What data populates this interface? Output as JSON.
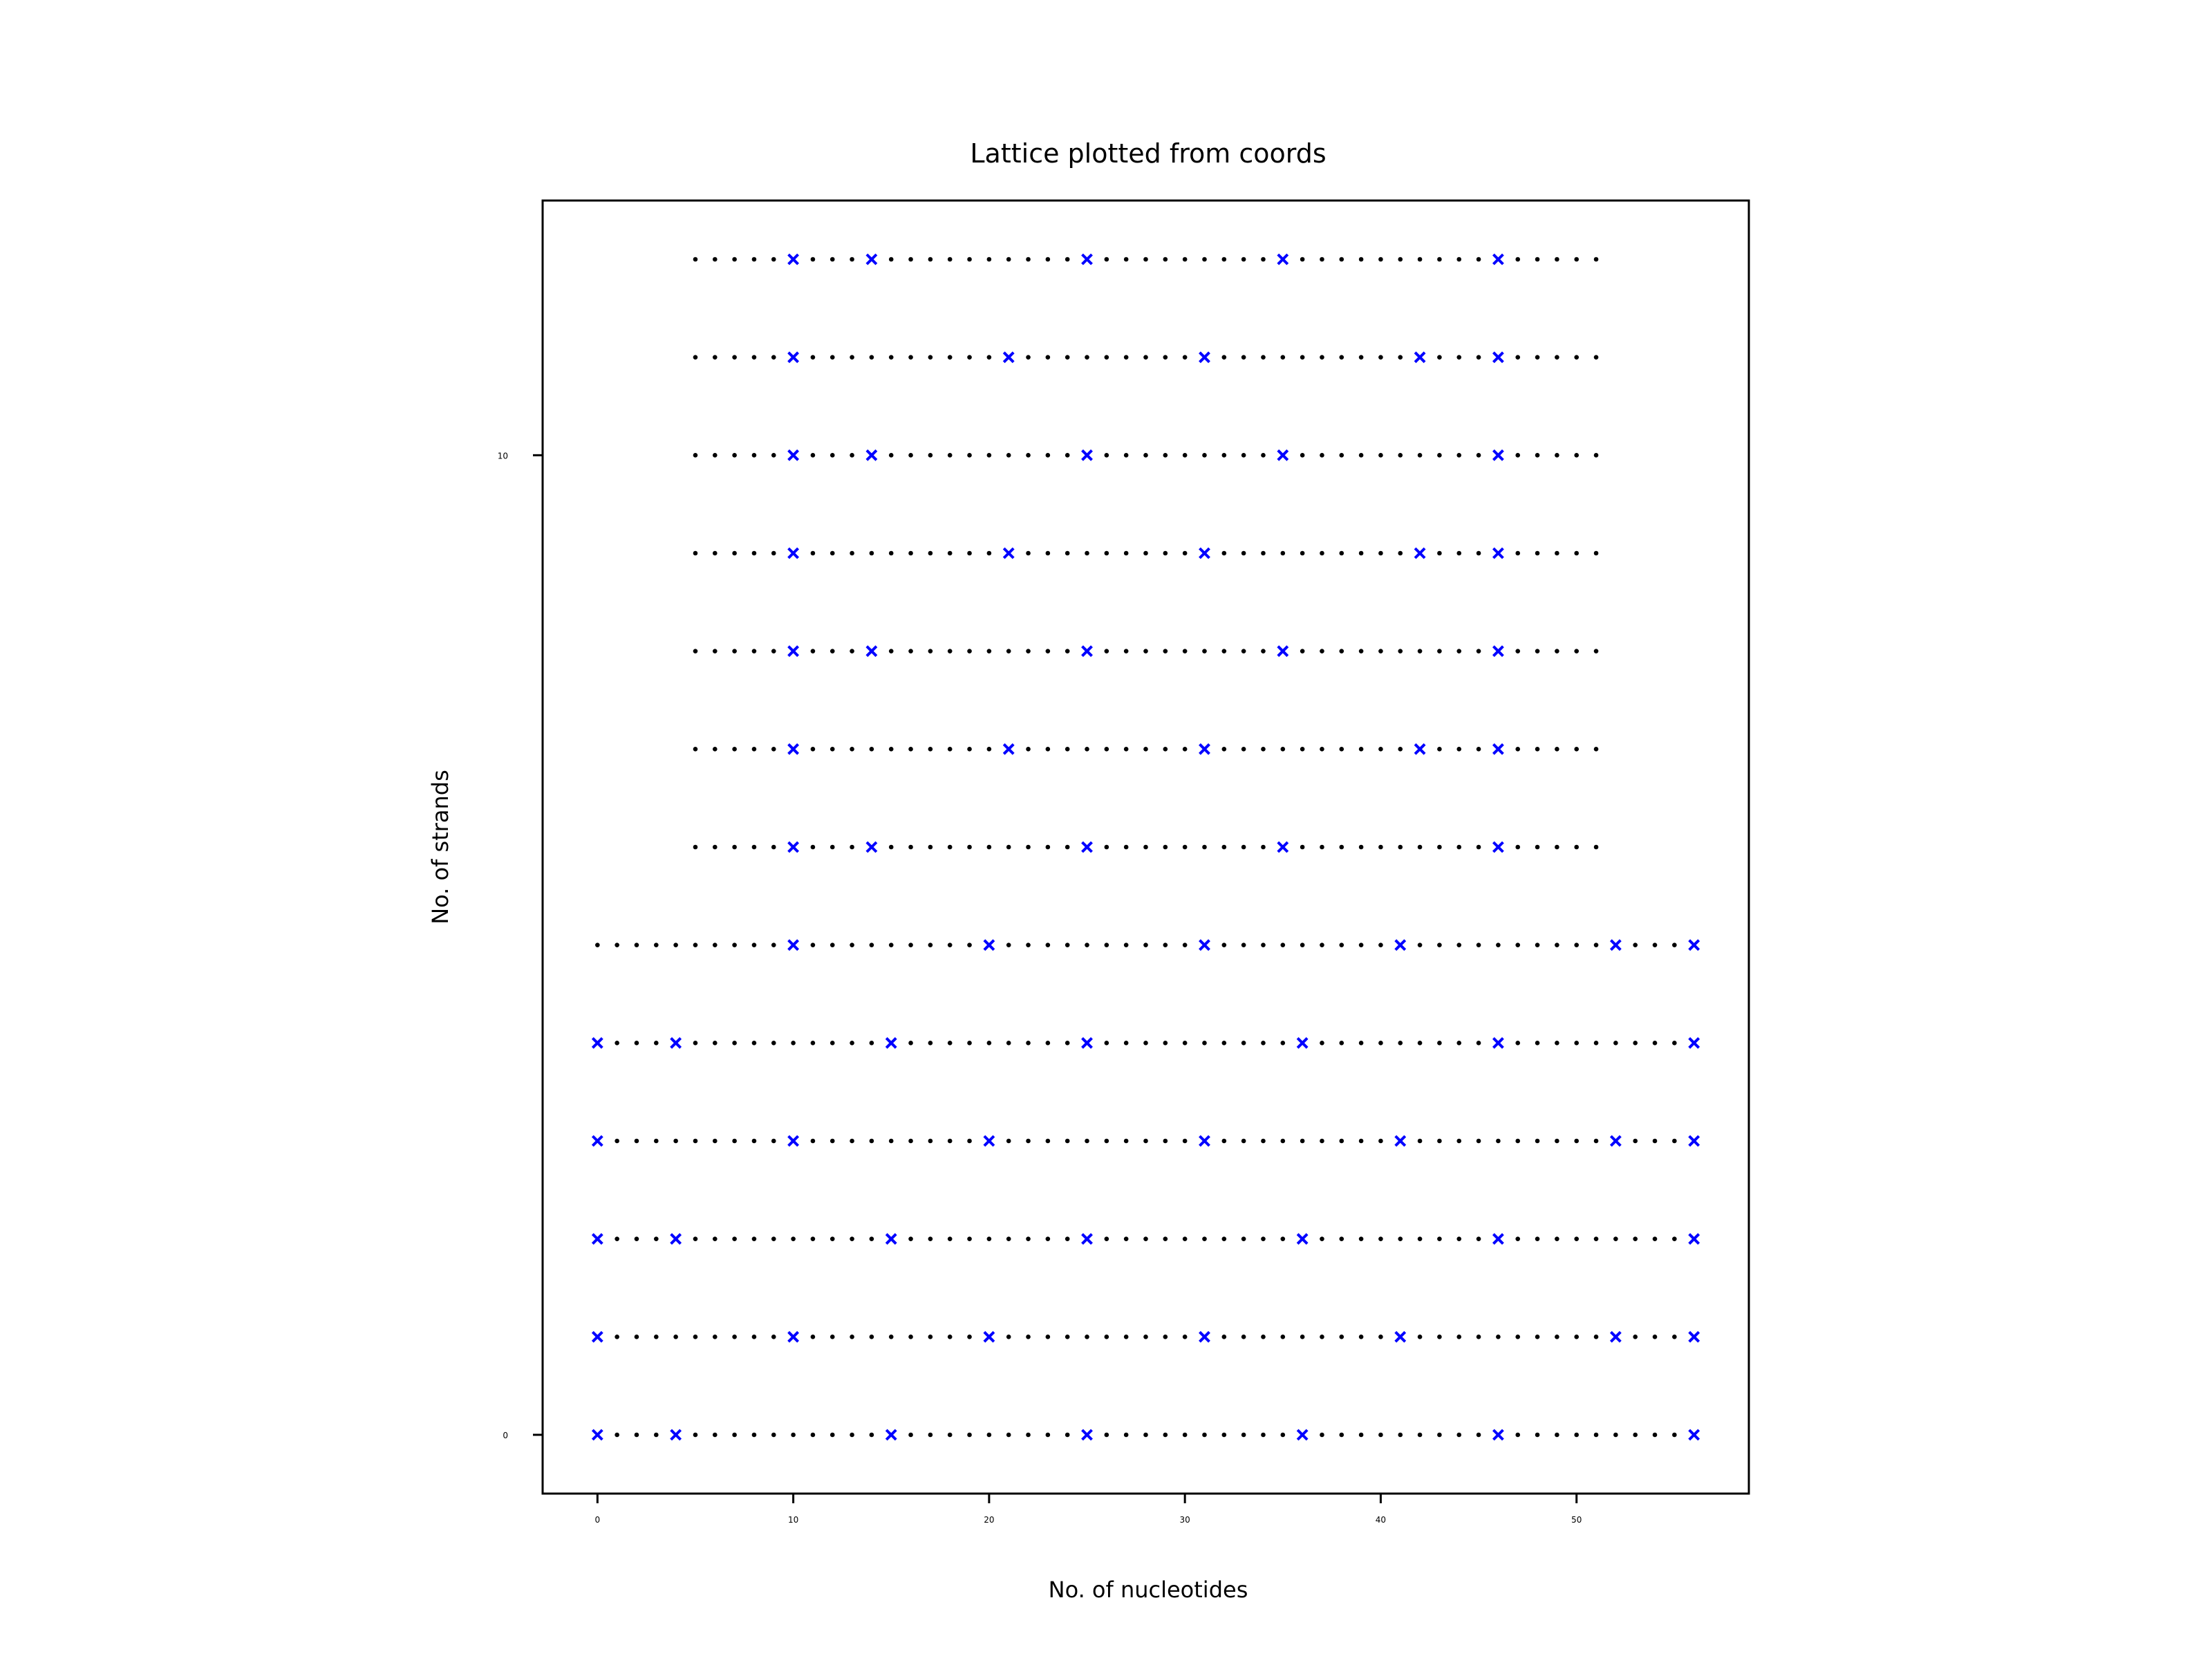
{
  "chart_data": {
    "type": "scatter",
    "title": "Lattice plotted from coords",
    "xlabel": "No. of nucleotides",
    "ylabel": "No. of strands",
    "xlim": [
      -2.8,
      58.8
    ],
    "ylim": [
      -0.6,
      12.6
    ],
    "xticks": [
      0,
      10,
      20,
      30,
      40,
      50
    ],
    "xtick_labels": [
      "0",
      "10",
      "20",
      "30",
      "40",
      "50"
    ],
    "yticks": [
      0,
      10
    ],
    "ytick_labels": [
      "0",
      "10"
    ],
    "grid": false,
    "legend": false,
    "colors": {
      "lattice_points": "#000000",
      "crossovers": "#0000ff"
    },
    "rows": [
      {
        "y": 0,
        "x_start": 0,
        "x_end": 56,
        "crossovers": [
          0,
          4,
          15,
          25,
          36,
          46,
          56
        ]
      },
      {
        "y": 1,
        "x_start": 0,
        "x_end": 56,
        "crossovers": [
          0,
          10,
          20,
          31,
          41,
          52,
          56
        ]
      },
      {
        "y": 2,
        "x_start": 0,
        "x_end": 56,
        "crossovers": [
          0,
          4,
          15,
          25,
          36,
          46,
          56
        ]
      },
      {
        "y": 3,
        "x_start": 0,
        "x_end": 56,
        "crossovers": [
          0,
          10,
          20,
          31,
          41,
          52,
          56
        ]
      },
      {
        "y": 4,
        "x_start": 0,
        "x_end": 56,
        "crossovers": [
          0,
          4,
          15,
          25,
          36,
          46,
          56
        ]
      },
      {
        "y": 5,
        "x_start": 0,
        "x_end": 56,
        "crossovers": [
          10,
          20,
          31,
          41,
          52,
          56
        ]
      },
      {
        "y": 6,
        "x_start": 5,
        "x_end": 51,
        "crossovers": [
          10,
          14,
          25,
          35,
          46
        ]
      },
      {
        "y": 7,
        "x_start": 5,
        "x_end": 51,
        "crossovers": [
          10,
          21,
          31,
          42,
          46
        ]
      },
      {
        "y": 8,
        "x_start": 5,
        "x_end": 51,
        "crossovers": [
          10,
          14,
          25,
          35,
          46
        ]
      },
      {
        "y": 9,
        "x_start": 5,
        "x_end": 51,
        "crossovers": [
          10,
          21,
          31,
          42,
          46
        ]
      },
      {
        "y": 10,
        "x_start": 5,
        "x_end": 51,
        "crossovers": [
          10,
          14,
          25,
          35,
          46
        ]
      },
      {
        "y": 11,
        "x_start": 5,
        "x_end": 51,
        "crossovers": [
          10,
          21,
          31,
          42,
          46
        ]
      },
      {
        "y": 12,
        "x_start": 5,
        "x_end": 51,
        "crossovers": [
          10,
          14,
          25,
          35,
          46
        ]
      }
    ]
  }
}
